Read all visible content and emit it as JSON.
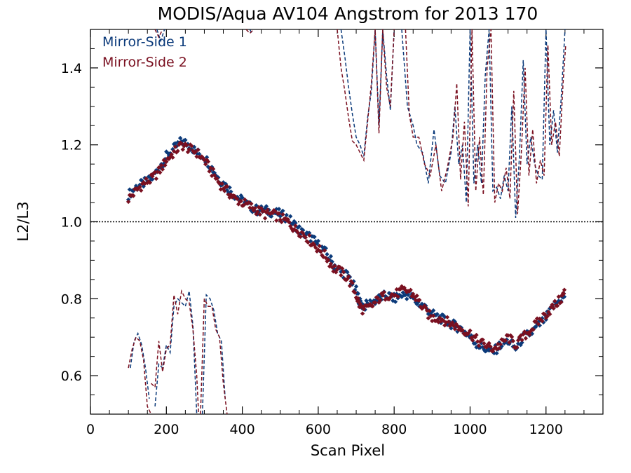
{
  "chart_data": {
    "type": "scatter",
    "title": "MODIS/Aqua AV104 Angstrom for 2013 170",
    "xlabel": "Scan Pixel",
    "ylabel": "L2/L3",
    "xlim": [
      0,
      1350
    ],
    "ylim": [
      0.5,
      1.5
    ],
    "x_ticks": [
      0,
      200,
      400,
      600,
      800,
      1000,
      1200
    ],
    "x_tick_labels": [
      "0",
      "200",
      "400",
      "600",
      "800",
      "1000",
      "1200"
    ],
    "y_ticks": [
      0.6,
      0.8,
      1.0,
      1.2,
      1.4
    ],
    "y_tick_labels": [
      "0.6",
      "0.8",
      "1.0",
      "1.2",
      "1.4"
    ],
    "reference_line": 1.0,
    "legend_position": "top-left",
    "grid": false,
    "series": [
      {
        "name": "Mirror-Side 1",
        "color": "#0b3a7a",
        "marker": "diamond",
        "x": [
          100,
          120,
          140,
          160,
          180,
          200,
          220,
          240,
          260,
          280,
          300,
          320,
          340,
          360,
          380,
          400,
          420,
          440,
          460,
          480,
          500,
          520,
          540,
          560,
          580,
          600,
          620,
          640,
          660,
          680,
          700,
          710,
          720,
          740,
          760,
          780,
          800,
          820,
          840,
          860,
          880,
          900,
          920,
          940,
          960,
          980,
          1000,
          1020,
          1040,
          1060,
          1080,
          1100,
          1120,
          1140,
          1160,
          1180,
          1200,
          1220,
          1240,
          1250
        ],
        "y": [
          1.07,
          1.09,
          1.1,
          1.11,
          1.14,
          1.17,
          1.19,
          1.21,
          1.2,
          1.18,
          1.17,
          1.14,
          1.11,
          1.09,
          1.07,
          1.055,
          1.04,
          1.03,
          1.03,
          1.025,
          1.02,
          1.01,
          0.99,
          0.97,
          0.96,
          0.94,
          0.92,
          0.89,
          0.87,
          0.86,
          0.82,
          0.79,
          0.78,
          0.79,
          0.8,
          0.81,
          0.8,
          0.81,
          0.81,
          0.79,
          0.78,
          0.76,
          0.75,
          0.74,
          0.73,
          0.72,
          0.7,
          0.68,
          0.67,
          0.66,
          0.68,
          0.69,
          0.67,
          0.7,
          0.71,
          0.73,
          0.75,
          0.78,
          0.8,
          0.81
        ]
      },
      {
        "name": "Mirror-Side 2",
        "color": "#7a1020",
        "marker": "diamond",
        "x": [
          100,
          120,
          140,
          160,
          180,
          200,
          220,
          240,
          260,
          280,
          300,
          320,
          340,
          360,
          380,
          400,
          420,
          440,
          460,
          480,
          500,
          520,
          540,
          560,
          580,
          600,
          620,
          640,
          660,
          680,
          700,
          710,
          720,
          740,
          760,
          780,
          800,
          820,
          840,
          860,
          880,
          900,
          920,
          940,
          960,
          980,
          1000,
          1020,
          1040,
          1060,
          1080,
          1100,
          1120,
          1140,
          1160,
          1180,
          1200,
          1220,
          1240,
          1250
        ],
        "y": [
          1.06,
          1.08,
          1.1,
          1.11,
          1.13,
          1.16,
          1.18,
          1.2,
          1.19,
          1.18,
          1.16,
          1.13,
          1.1,
          1.08,
          1.06,
          1.05,
          1.04,
          1.03,
          1.02,
          1.02,
          1.01,
          1.0,
          0.98,
          0.97,
          0.95,
          0.93,
          0.91,
          0.88,
          0.87,
          0.85,
          0.81,
          0.78,
          0.77,
          0.78,
          0.8,
          0.81,
          0.81,
          0.82,
          0.82,
          0.8,
          0.77,
          0.75,
          0.75,
          0.74,
          0.73,
          0.72,
          0.71,
          0.69,
          0.68,
          0.67,
          0.68,
          0.7,
          0.68,
          0.7,
          0.72,
          0.74,
          0.76,
          0.78,
          0.8,
          0.82
        ]
      }
    ],
    "dashed_series": [
      {
        "name": "Mirror-Side 1",
        "color": "#0b3a7a",
        "segments": [
          {
            "x": [
              105,
              115,
              125,
              135,
              145,
              155
            ],
            "y": [
              0.62,
              0.69,
              0.71,
              0.68,
              0.62,
              0.54
            ]
          },
          {
            "x": [
              170,
              180,
              190,
              200,
              210,
              220,
              230,
              240,
              250,
              260,
              270,
              280
            ],
            "y": [
              0.52,
              0.63,
              0.62,
              0.68,
              0.66,
              0.78,
              0.8,
              0.79,
              0.78,
              0.82,
              0.73,
              0.5
            ]
          },
          {
            "x": [
              295,
              305,
              315,
              325,
              335,
              345,
              355
            ],
            "y": [
              0.5,
              0.81,
              0.8,
              0.77,
              0.71,
              0.69,
              0.54
            ]
          },
          {
            "x": [
              175,
              185,
              195
            ],
            "y": [
              1.5,
              1.47,
              1.5
            ]
          },
          {
            "x": [
              420,
              425
            ],
            "y": [
              1.5,
              1.49
            ]
          },
          {
            "x": [
              660,
              670,
              680,
              690,
              700,
              710,
              720,
              730,
              740,
              750,
              760,
              770,
              780,
              790,
              800
            ],
            "y": [
              1.5,
              1.43,
              1.35,
              1.28,
              1.22,
              1.2,
              1.17,
              1.27,
              1.34,
              1.5,
              1.25,
              1.5,
              1.38,
              1.29,
              1.5
            ]
          },
          {
            "x": [
              820,
              835,
              850,
              860,
              875,
              890,
              905,
              920,
              935,
              950,
              960,
              970,
              980,
              990,
              1000,
              1010,
              1020,
              1030,
              1040,
              1050,
              1060,
              1070,
              1080,
              1090,
              1100,
              1110,
              1120,
              1130,
              1140,
              1150,
              1160,
              1170,
              1180,
              1190,
              1200,
              1210,
              1220,
              1230,
              1240,
              1250
            ],
            "y": [
              1.5,
              1.3,
              1.25,
              1.2,
              1.18,
              1.1,
              1.24,
              1.12,
              1.1,
              1.18,
              1.3,
              1.15,
              1.2,
              1.05,
              1.5,
              1.1,
              1.2,
              1.1,
              1.38,
              1.5,
              1.08,
              1.09,
              1.06,
              1.12,
              1.08,
              1.3,
              1.01,
              1.17,
              1.42,
              1.15,
              1.22,
              1.15,
              1.12,
              1.11,
              1.5,
              1.2,
              1.29,
              1.18,
              1.32,
              1.5
            ]
          }
        ]
      },
      {
        "name": "Mirror-Side 2",
        "color": "#7a1020",
        "segments": [
          {
            "x": [
              100,
              110,
              120,
              130,
              140,
              150,
              160
            ],
            "y": [
              0.62,
              0.67,
              0.7,
              0.69,
              0.64,
              0.52,
              0.5
            ]
          },
          {
            "x": [
              160,
              170,
              180,
              190,
              200,
              210,
              220,
              230,
              240,
              250,
              260,
              270,
              280,
              285
            ],
            "y": [
              0.58,
              0.57,
              0.69,
              0.61,
              0.67,
              0.68,
              0.81,
              0.76,
              0.82,
              0.8,
              0.79,
              0.72,
              0.6,
              0.5
            ]
          },
          {
            "x": [
              290,
              300,
              310,
              320,
              330,
              340,
              350,
              360
            ],
            "y": [
              0.5,
              0.8,
              0.78,
              0.78,
              0.72,
              0.7,
              0.58,
              0.5
            ]
          },
          {
            "x": [
              170,
              180,
              190
            ],
            "y": [
              1.5,
              1.48,
              1.5
            ]
          },
          {
            "x": [
              410,
              420,
              430
            ],
            "y": [
              1.5,
              1.49,
              1.5
            ]
          },
          {
            "x": [
              650,
              660,
              670,
              680,
              690,
              700,
              710,
              720,
              730,
              740,
              750,
              760,
              770,
              780,
              790,
              800
            ],
            "y": [
              1.5,
              1.4,
              1.34,
              1.27,
              1.21,
              1.2,
              1.18,
              1.16,
              1.26,
              1.36,
              1.5,
              1.23,
              1.5,
              1.35,
              1.3,
              1.5
            ]
          },
          {
            "x": [
              830,
              840,
              850,
              865,
              880,
              895,
              910,
              925,
              940,
              955,
              965,
              975,
              985,
              995,
              1005,
              1015,
              1025,
              1035,
              1045,
              1055,
              1065,
              1075,
              1085,
              1095,
              1105,
              1115,
              1125,
              1135,
              1145,
              1155,
              1165,
              1175,
              1185,
              1195,
              1205,
              1215,
              1225,
              1235,
              1245,
              1252
            ],
            "y": [
              1.5,
              1.28,
              1.22,
              1.22,
              1.15,
              1.12,
              1.2,
              1.08,
              1.14,
              1.22,
              1.36,
              1.11,
              1.26,
              1.04,
              1.5,
              1.08,
              1.22,
              1.07,
              1.4,
              1.5,
              1.05,
              1.1,
              1.08,
              1.14,
              1.06,
              1.34,
              1.02,
              1.18,
              1.4,
              1.12,
              1.24,
              1.1,
              1.16,
              1.12,
              1.46,
              1.2,
              1.26,
              1.17,
              1.36,
              1.46
            ]
          }
        ]
      }
    ]
  }
}
